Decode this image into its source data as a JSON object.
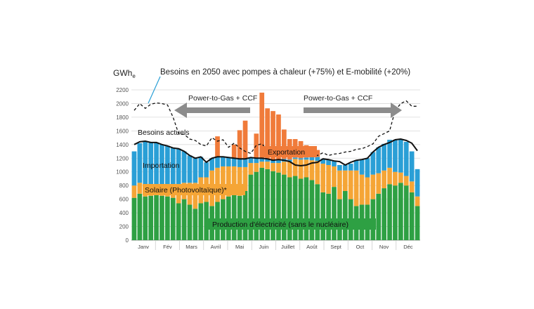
{
  "chart_data": {
    "type": "bar",
    "title": "Besoins en 2050 avec pompes à chaleur (+75%) et E-mobilité (+20%)",
    "ylabel": "GWh",
    "ylabel_subscript": "e",
    "ylim": [
      0,
      2200
    ],
    "yticks": [
      0,
      200,
      400,
      600,
      800,
      1000,
      1200,
      1400,
      1600,
      1800,
      2000,
      2200
    ],
    "grid": true,
    "months": [
      "Janv",
      "Fév",
      "Mars",
      "Avril",
      "Mai",
      "Juin",
      "Juillet",
      "Août",
      "Sept",
      "Oct",
      "Nov",
      "Déc"
    ],
    "week_count": 52,
    "series": [
      {
        "name": "Production d'électricité (sans le nucléaire)",
        "color": "#2ea043",
        "values": [
          620,
          680,
          640,
          650,
          660,
          650,
          640,
          620,
          540,
          600,
          520,
          460,
          540,
          560,
          500,
          560,
          600,
          640,
          660,
          650,
          720,
          960,
          1000,
          1060,
          1040,
          1010,
          990,
          960,
          920,
          940,
          900,
          920,
          880,
          820,
          700,
          680,
          780,
          600,
          720,
          600,
          500,
          520,
          520,
          600,
          680,
          760,
          820,
          800,
          840,
          800,
          700,
          500
        ]
      },
      {
        "name": "Solaire (Photovoltaïque)*",
        "color": "#f5a536",
        "values": [
          180,
          160,
          180,
          160,
          160,
          150,
          150,
          160,
          240,
          240,
          320,
          380,
          380,
          360,
          520,
          500,
          480,
          440,
          420,
          420,
          350,
          170,
          130,
          90,
          110,
          120,
          140,
          190,
          230,
          250,
          280,
          260,
          290,
          340,
          420,
          420,
          300,
          420,
          300,
          420,
          520,
          440,
          400,
          360,
          300,
          260,
          240,
          200,
          150,
          140,
          160,
          140
        ]
      },
      {
        "name": "Importation",
        "color": "#2a9fd6",
        "values": [
          500,
          580,
          620,
          620,
          610,
          600,
          590,
          570,
          560,
          460,
          400,
          360,
          300,
          220,
          180,
          160,
          140,
          130,
          120,
          120,
          120,
          80,
          70,
          50,
          40,
          40,
          50,
          40,
          30,
          20,
          20,
          30,
          60,
          60,
          70,
          80,
          80,
          80,
          80,
          100,
          150,
          220,
          280,
          330,
          380,
          390,
          410,
          470,
          490,
          500,
          440,
          400
        ]
      },
      {
        "name": "Exportation",
        "color": "#f07b3a",
        "values": [
          0,
          0,
          0,
          0,
          0,
          0,
          0,
          0,
          0,
          0,
          0,
          0,
          0,
          0,
          0,
          300,
          0,
          0,
          200,
          420,
          560,
          0,
          360,
          960,
          740,
          720,
          660,
          430,
          300,
          270,
          250,
          180,
          130,
          100,
          0,
          0,
          0,
          0,
          0,
          0,
          0,
          0,
          0,
          0,
          0,
          0,
          0,
          0,
          0,
          0,
          0,
          0
        ]
      }
    ],
    "lines": [
      {
        "name": "Besoins actuels",
        "style": "solid",
        "color": "#111111",
        "values": [
          1400,
          1440,
          1450,
          1430,
          1430,
          1400,
          1380,
          1350,
          1340,
          1300,
          1240,
          1200,
          1220,
          1140,
          1200,
          1220,
          1220,
          1210,
          1200,
          1190,
          1190,
          1210,
          1200,
          1200,
          1190,
          1170,
          1180,
          1170,
          1150,
          1100,
          1090,
          1100,
          1130,
          1140,
          1190,
          1180,
          1160,
          1150,
          1100,
          1140,
          1170,
          1180,
          1200,
          1290,
          1360,
          1400,
          1430,
          1470,
          1480,
          1460,
          1420,
          1310
        ]
      },
      {
        "name": "Besoins en 2050 avec pompes à chaleur (+75%) et E-mobilité (+20%)",
        "style": "dashed",
        "color": "#111111",
        "values": [
          1900,
          2000,
          1930,
          1990,
          2010,
          2000,
          1980,
          1800,
          1560,
          1550,
          1480,
          1460,
          1400,
          1380,
          1500,
          1450,
          1470,
          1360,
          1420,
          1350,
          1300,
          1270,
          1390,
          1410,
          1320,
          1300,
          1300,
          1260,
          1270,
          1310,
          1240,
          1230,
          1250,
          1240,
          1280,
          1240,
          1260,
          1270,
          1290,
          1300,
          1330,
          1340,
          1370,
          1410,
          1520,
          1560,
          1600,
          1900,
          2000,
          2040,
          1960,
          1960
        ]
      }
    ],
    "annotations": [
      {
        "text": "Power-to-Gas + CCF",
        "arrow": "left"
      },
      {
        "text": "Power-to-Gas + CCF",
        "arrow": "right"
      },
      {
        "text": "Besoins actuels"
      },
      {
        "text": "Importation"
      },
      {
        "text": "Exportation"
      },
      {
        "text": "Solaire (Photovoltaïque)*"
      },
      {
        "text": "Production d'électricité (sans le nucléaire)"
      }
    ]
  }
}
